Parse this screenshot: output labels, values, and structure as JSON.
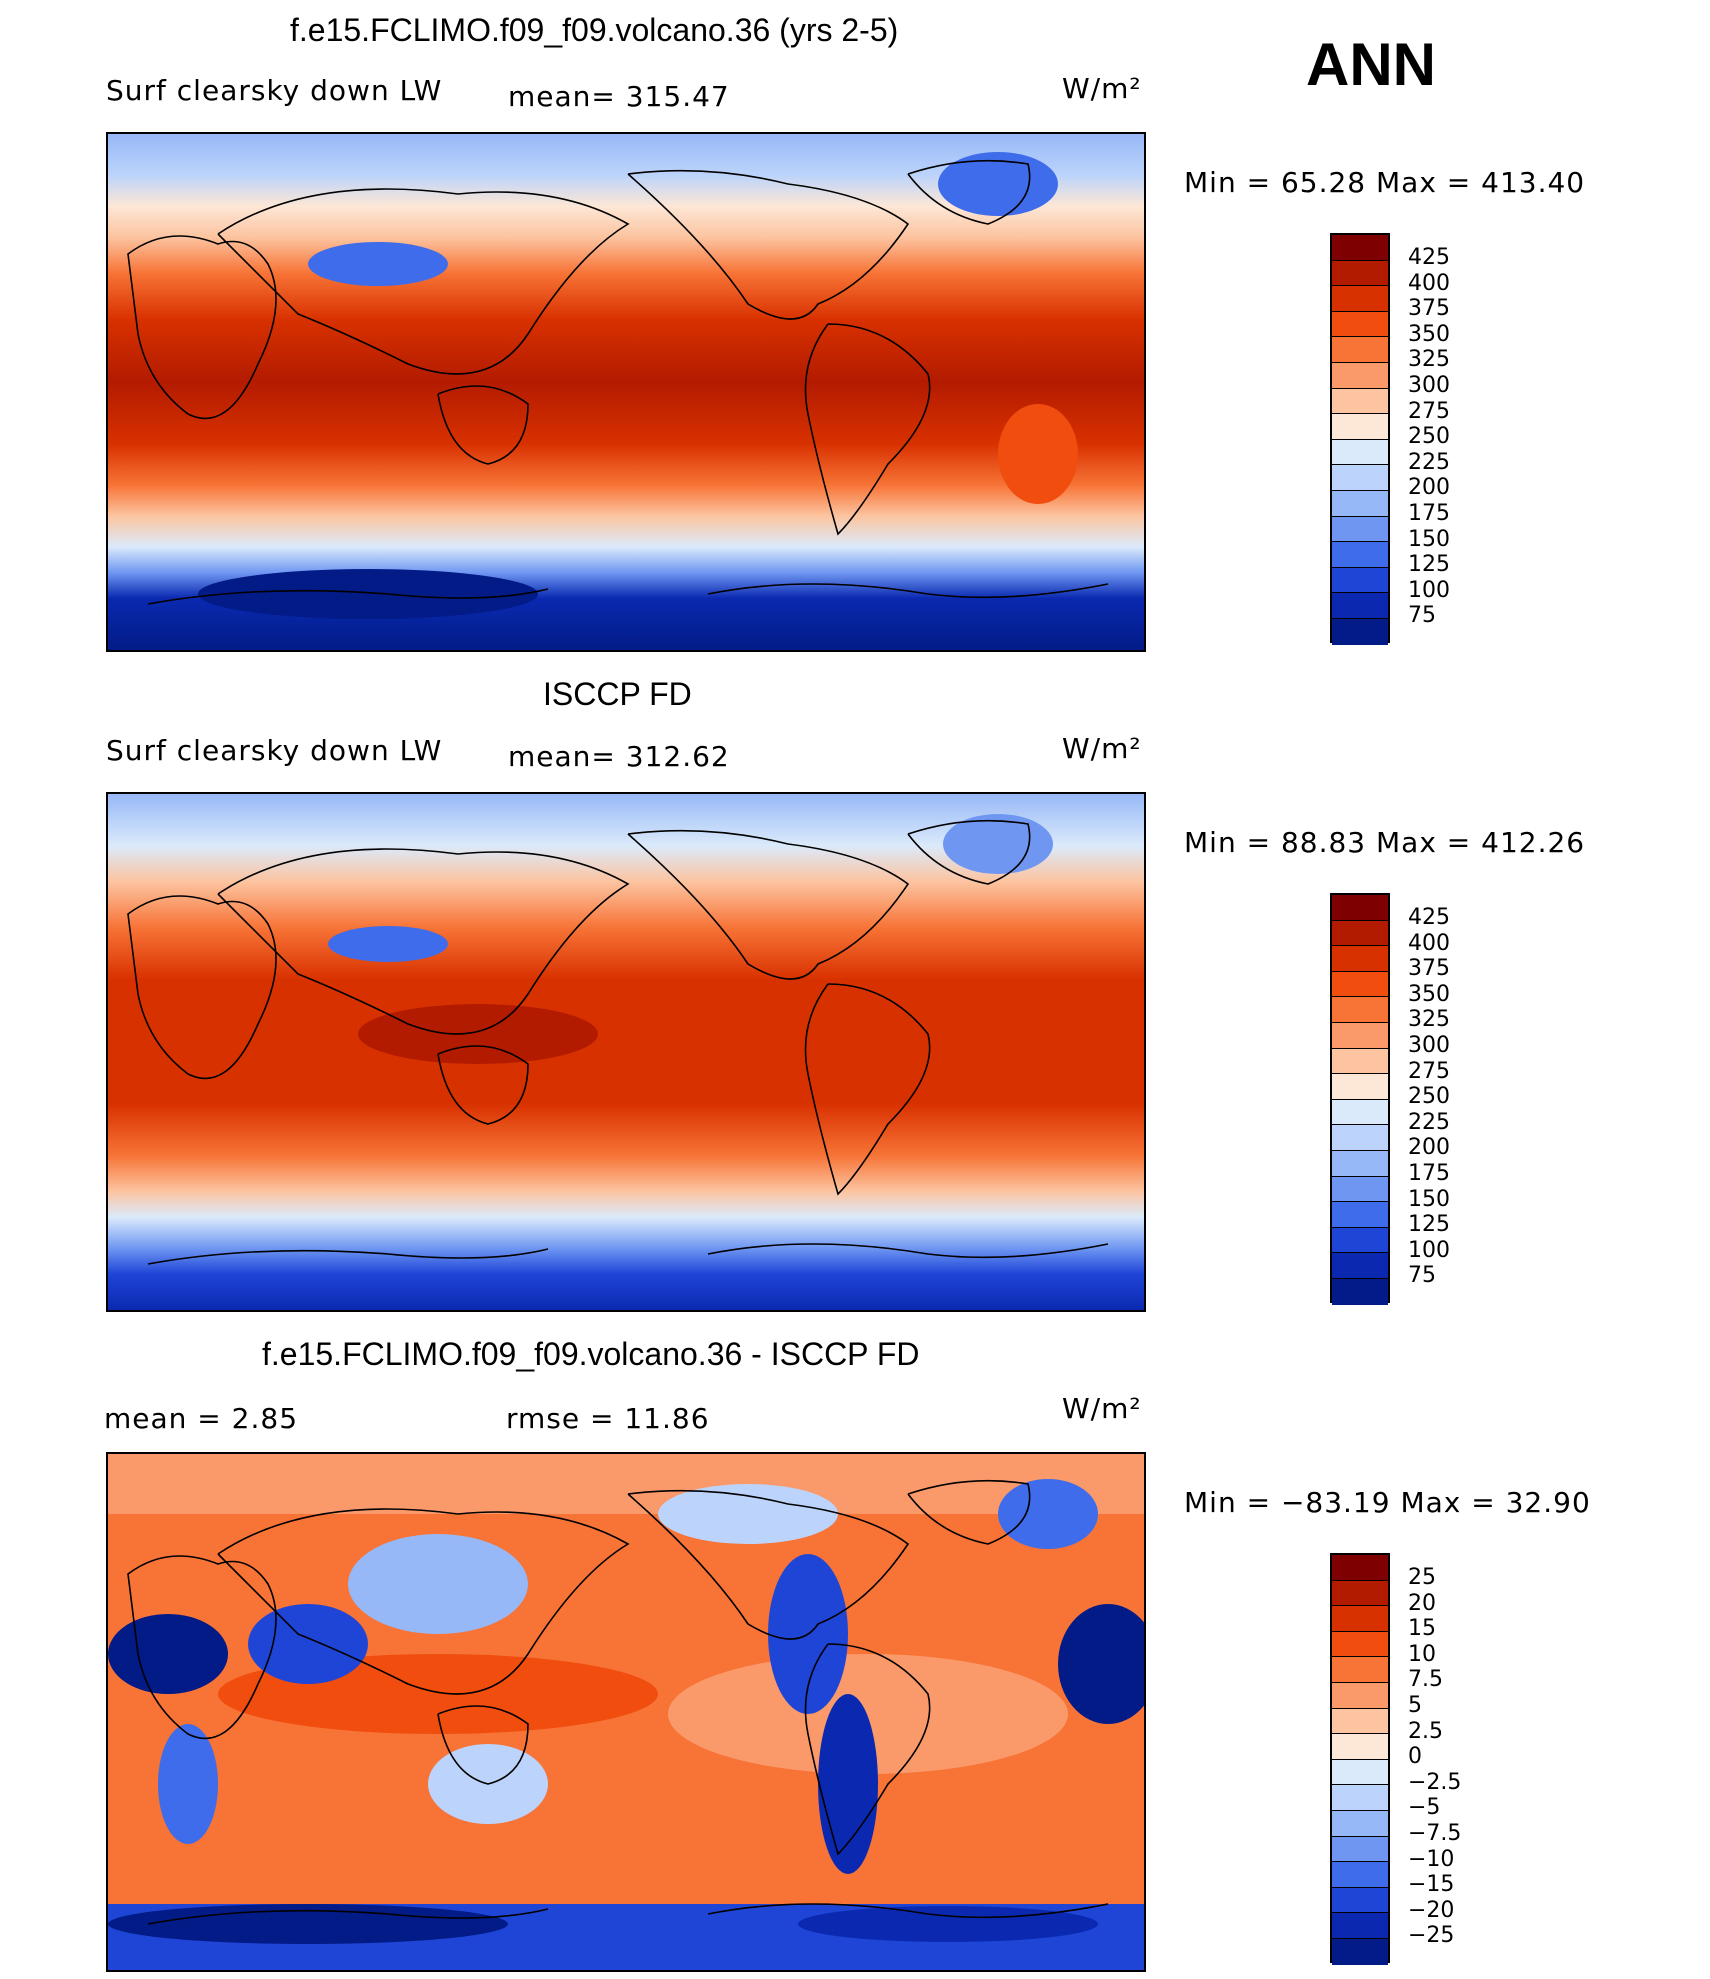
{
  "season": "ANN",
  "panels": [
    {
      "title": "f.e15.FCLIMO.f09_f09.volcano.36 (yrs 2-5)",
      "left_label": "Surf clearsky down LW",
      "center_label": "mean= 315.47",
      "units": "W/m²",
      "minmax": "Min =   65.28 Max = 413.40",
      "levels": [
        "425",
        "400",
        "375",
        "350",
        "325",
        "300",
        "275",
        "250",
        "225",
        "200",
        "175",
        "150",
        "125",
        "100",
        "75"
      ]
    },
    {
      "title": "ISCCP FD",
      "left_label": "Surf clearsky down LW",
      "center_label": "mean= 312.62",
      "units": "W/m²",
      "minmax": "Min =   88.83 Max = 412.26",
      "levels": [
        "425",
        "400",
        "375",
        "350",
        "325",
        "300",
        "275",
        "250",
        "225",
        "200",
        "175",
        "150",
        "125",
        "100",
        "75"
      ]
    },
    {
      "title": "f.e15.FCLIMO.f09_f09.volcano.36 - ISCCP FD",
      "left_label": "mean =     2.85",
      "center_label": "rmse =    11.86",
      "units": "W/m²",
      "minmax": "Min = −83.19 Max =   32.90",
      "levels": [
        "25",
        "20",
        "15",
        "10",
        "7.5",
        "5",
        "2.5",
        "0",
        "−2.5",
        "−5",
        "−7.5",
        "−10",
        "−15",
        "−20",
        "−25"
      ]
    }
  ],
  "colors": {
    "scale": [
      "#7f0000",
      "#b31b00",
      "#d83100",
      "#f04d0f",
      "#f77336",
      "#fa9a6a",
      "#fcc4a0",
      "#fde7d6",
      "#dbeafb",
      "#bcd4fb",
      "#97b8f7",
      "#6f97f2",
      "#3f6cea",
      "#1f45d7",
      "#0a29b0",
      "#021b87"
    ]
  }
}
